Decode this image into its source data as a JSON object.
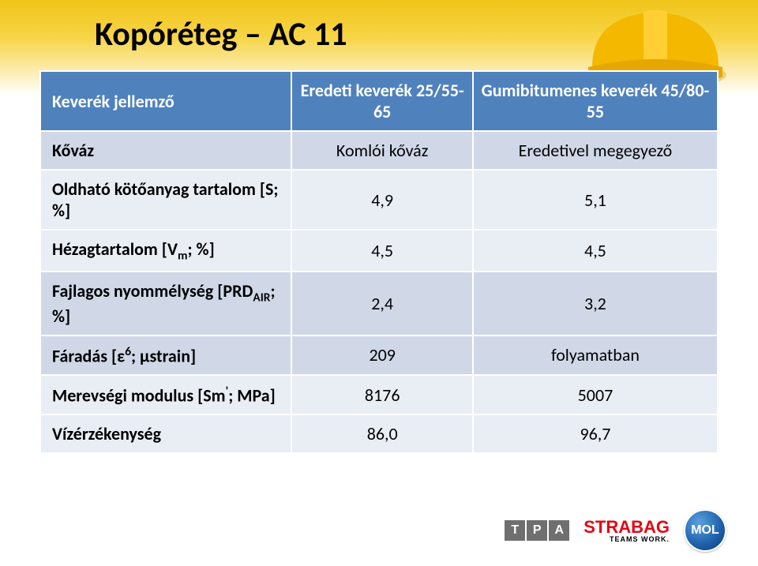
{
  "title": "Kopóréteg – AC 11",
  "table": {
    "headers": [
      "Keverék jellemző",
      "Eredeti keverék 25/55-65",
      "Gumibitumenes keverék 45/80-55"
    ],
    "rows": [
      {
        "band": "a",
        "label_html": "Kőváz",
        "c1": "Komlói kőváz",
        "c2": "Eredetivel megegyező"
      },
      {
        "band": "b",
        "label_html": "Oldható kötőanyag tartalom [S; %]",
        "c1": "4,9",
        "c2": "5,1"
      },
      {
        "band": "b",
        "label_html": "Hézagtartalom [V<span class=\"sub\">m</span>; %]",
        "c1": "4,5",
        "c2": "4,5"
      },
      {
        "band": "a",
        "label_html": "Fajlagos nyommélység [PRD<span class=\"sub\">AIR</span>; %]",
        "c1": "2,4",
        "c2": "3,2"
      },
      {
        "band": "a",
        "label_html": "Fáradás [ε<span class=\"sup\">6</span>; μstrain]",
        "c1": "209",
        "c2": "folyamatban"
      },
      {
        "band": "b",
        "label_html": "Merevségi modulus [Sm<span class=\"sup\">'</span>; MPa]",
        "c1": "8176",
        "c2": "5007"
      },
      {
        "band": "b",
        "label_html": "Vízérzékenység",
        "c1": "86,0",
        "c2": "96,7"
      }
    ],
    "colors": {
      "header_bg": "#4f81bd",
      "header_fg": "#ffffff",
      "band_a": "#d0d8e8",
      "band_b": "#e9edf4",
      "border": "#ffffff"
    },
    "fontsize": 22
  },
  "logos": {
    "tpa": {
      "letters": [
        "T",
        "P",
        "A"
      ],
      "bg": "#6f6f6f",
      "fg": "#ffffff"
    },
    "strabag": {
      "name": "STRABAG",
      "tag": "TEAMS WORK.",
      "color": "#e30613"
    },
    "mol": {
      "name": "MOL",
      "bg_outer": "#0b3e78",
      "bg_inner": "#5aa0e0",
      "fg": "#ffffff"
    }
  },
  "background": {
    "gradient_top": "#f0c419",
    "gradient_bottom": "#ffffff",
    "helmet_color": "#f5b800"
  }
}
